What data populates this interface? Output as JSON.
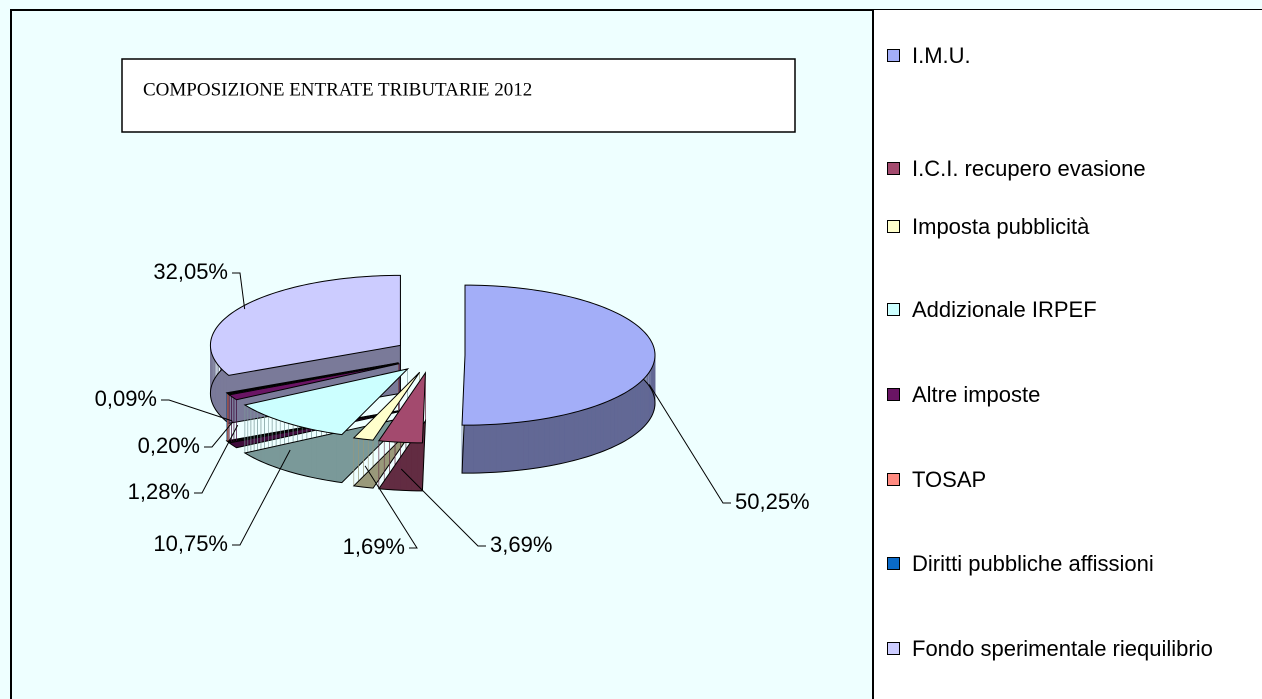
{
  "chart_data": {
    "type": "pie3d",
    "title": "COMPOSIZIONE ENTRATE TRIBUTARIE 2012",
    "categories": [
      "I.M.U.",
      "I.C.I. recupero evasione",
      "Imposta pubblicità",
      "Addizionale IRPEF",
      "Altre imposte",
      "TOSAP",
      "Diritti pubbliche affissioni",
      "Fondo sperimentale riequilibrio"
    ],
    "values": [
      50.25,
      3.69,
      1.69,
      10.75,
      1.28,
      0.2,
      0.09,
      32.05
    ],
    "value_labels": [
      "50,25%",
      "3,69%",
      "1,69%",
      "10,75%",
      "1,28%",
      "0,20%",
      "0,09%",
      "32,05%"
    ],
    "colors": [
      "#a3aef8",
      "#a34a6e",
      "#ffffcc",
      "#ccffff",
      "#6a1464",
      "#ff8a80",
      "#0a6ac8",
      "#ccccff"
    ],
    "legend": "right"
  }
}
